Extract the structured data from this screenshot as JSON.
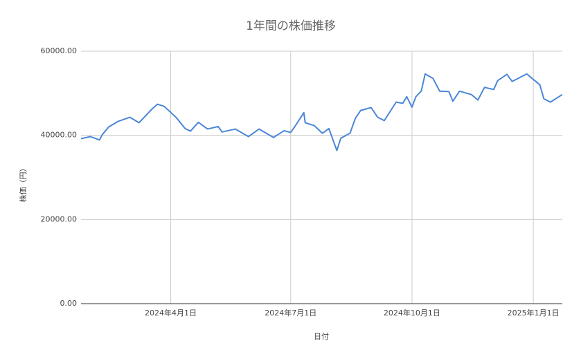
{
  "chart_data": {
    "type": "line",
    "title": "1年間の株価推移",
    "x_label": "日付",
    "y_label": "株価（円）",
    "x": [
      "2024-01-24",
      "2024-01-31",
      "2024-02-07",
      "2024-02-09",
      "2024-02-14",
      "2024-02-21",
      "2024-03-01",
      "2024-03-08",
      "2024-03-18",
      "2024-03-22",
      "2024-03-27",
      "2024-04-05",
      "2024-04-12",
      "2024-04-16",
      "2024-04-22",
      "2024-04-29",
      "2024-05-07",
      "2024-05-10",
      "2024-05-20",
      "2024-05-30",
      "2024-06-07",
      "2024-06-18",
      "2024-06-26",
      "2024-07-01",
      "2024-07-04",
      "2024-07-11",
      "2024-07-12",
      "2024-07-19",
      "2024-07-25",
      "2024-07-30",
      "2024-08-05",
      "2024-08-08",
      "2024-08-15",
      "2024-08-19",
      "2024-08-23",
      "2024-08-31",
      "2024-09-05",
      "2024-09-10",
      "2024-09-19",
      "2024-09-24",
      "2024-09-27",
      "2024-10-01",
      "2024-10-04",
      "2024-10-08",
      "2024-10-11",
      "2024-10-17",
      "2024-10-22",
      "2024-10-29",
      "2024-11-01",
      "2024-11-06",
      "2024-11-15",
      "2024-11-20",
      "2024-11-25",
      "2024-12-02",
      "2024-12-05",
      "2024-12-12",
      "2024-12-16",
      "2024-12-27",
      "2025-01-06",
      "2025-01-09",
      "2025-01-14",
      "2025-01-23"
    ],
    "series": [
      {
        "name": "株価",
        "color": "#4a86d8",
        "values": [
          39200,
          39700,
          38900,
          40100,
          42000,
          43300,
          44300,
          43000,
          46300,
          47400,
          46900,
          44300,
          41600,
          41000,
          43100,
          41500,
          42100,
          40800,
          41500,
          39700,
          41500,
          39500,
          41100,
          40700,
          42000,
          45400,
          43000,
          42300,
          40500,
          41600,
          36400,
          39300,
          40500,
          44000,
          45900,
          46600,
          44300,
          43500,
          47900,
          47600,
          49200,
          46700,
          49200,
          50500,
          54600,
          53500,
          50500,
          50400,
          48100,
          50500,
          49700,
          48400,
          51400,
          50900,
          53000,
          54500,
          52800,
          54600,
          52000,
          48700,
          47900,
          49700
        ]
      }
    ],
    "xlim": [
      "2024-01-24",
      "2025-01-23"
    ],
    "xticks": [
      {
        "value": "2024-04-01",
        "label": "2024年4月1日"
      },
      {
        "value": "2024-07-01",
        "label": "2024年7月1日"
      },
      {
        "value": "2024-10-01",
        "label": "2024年10月1日"
      },
      {
        "value": "2025-01-01",
        "label": "2025年1月1日"
      }
    ],
    "ylim": [
      0,
      60000
    ],
    "yticks": [
      {
        "value": 0,
        "label": "0.00"
      },
      {
        "value": 20000,
        "label": "20000.00"
      },
      {
        "value": 40000,
        "label": "40000.00"
      },
      {
        "value": 60000,
        "label": "60000.00"
      }
    ],
    "grid": true
  }
}
